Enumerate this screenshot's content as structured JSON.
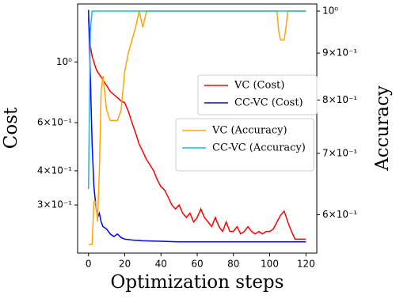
{
  "chart_data": {
    "type": "line",
    "xlabel": "Optimization steps",
    "ylabel": "Cost",
    "y2label": "Accuracy",
    "xlim": [
      -6,
      126
    ],
    "ylim": [
      0.2,
      1.63
    ],
    "y2lim": [
      0.545,
      1.018
    ],
    "yscale": "log",
    "y2scale": "log",
    "grid": false,
    "xticks": [
      0,
      20,
      40,
      60,
      80,
      100,
      120
    ],
    "yticks": [
      {
        "value": 1,
        "label": "10⁰"
      },
      {
        "value": 0.6,
        "label": "6×10⁻¹"
      },
      {
        "value": 0.4,
        "label": "4×10⁻¹"
      },
      {
        "value": 0.3,
        "label": "3×10⁻¹"
      }
    ],
    "y2ticks": [
      {
        "value": 1,
        "label": "10⁰"
      },
      {
        "value": 0.9,
        "label": "9×10⁻¹"
      },
      {
        "value": 0.8,
        "label": "8×10⁻¹"
      },
      {
        "value": 0.7,
        "label": "7×10⁻¹"
      },
      {
        "value": 0.6,
        "label": "6×10⁻¹"
      }
    ],
    "series": [
      {
        "name": "VC (Cost)",
        "color": "#ff0000",
        "x": [
          0,
          1,
          2,
          3,
          4,
          5,
          6,
          7,
          8,
          10,
          12,
          14,
          16,
          18,
          20,
          22,
          24,
          26,
          28,
          30,
          32,
          34,
          36,
          38,
          40,
          42,
          44,
          46,
          48,
          50,
          52,
          54,
          56,
          58,
          60,
          62,
          64,
          66,
          68,
          70,
          72,
          74,
          76,
          78,
          80,
          82,
          84,
          86,
          88,
          90,
          92,
          94,
          96,
          98,
          100,
          102,
          104,
          106,
          108,
          110,
          112,
          114,
          116,
          118,
          120
        ],
        "values": [
          1.45,
          1.15,
          1.05,
          1.0,
          0.95,
          0.92,
          0.9,
          0.88,
          0.86,
          0.82,
          0.78,
          0.76,
          0.74,
          0.72,
          0.71,
          0.66,
          0.6,
          0.55,
          0.5,
          0.47,
          0.44,
          0.42,
          0.4,
          0.37,
          0.35,
          0.34,
          0.32,
          0.3,
          0.29,
          0.3,
          0.28,
          0.27,
          0.28,
          0.26,
          0.27,
          0.29,
          0.27,
          0.26,
          0.25,
          0.27,
          0.25,
          0.24,
          0.26,
          0.24,
          0.24,
          0.25,
          0.235,
          0.24,
          0.25,
          0.24,
          0.235,
          0.24,
          0.235,
          0.24,
          0.24,
          0.245,
          0.26,
          0.275,
          0.285,
          0.26,
          0.24,
          0.225,
          0.225,
          0.225,
          0.225
        ]
      },
      {
        "name": "CC-VC (Cost)",
        "color": "#0000ff",
        "x": [
          0,
          1,
          2,
          3,
          4,
          5,
          6,
          7,
          8,
          10,
          12,
          14,
          16,
          18,
          20,
          25,
          30,
          40,
          50,
          60,
          70,
          80,
          90,
          100,
          110,
          120
        ],
        "values": [
          1.55,
          0.9,
          0.5,
          0.35,
          0.3,
          0.27,
          0.28,
          0.26,
          0.25,
          0.245,
          0.235,
          0.23,
          0.235,
          0.228,
          0.225,
          0.223,
          0.222,
          0.221,
          0.22,
          0.22,
          0.22,
          0.22,
          0.22,
          0.22,
          0.22,
          0.22
        ]
      },
      {
        "name": "VC (Accuracy)",
        "color": "#ffa500",
        "axis": "y2",
        "x": [
          0,
          1,
          2,
          3,
          4,
          5,
          6,
          7,
          8,
          10,
          12,
          14,
          16,
          18,
          20,
          22,
          24,
          26,
          28,
          30,
          32,
          104,
          105,
          106,
          107,
          108,
          109,
          110,
          120
        ],
        "values": [
          0.557,
          0.557,
          0.557,
          0.62,
          0.62,
          0.59,
          0.67,
          0.82,
          0.85,
          0.78,
          0.76,
          0.76,
          0.76,
          0.78,
          0.86,
          0.9,
          0.93,
          0.96,
          1.0,
          0.96,
          1.0,
          1.0,
          0.95,
          0.93,
          0.93,
          0.93,
          0.96,
          1.0,
          1.0
        ]
      },
      {
        "name": "CC-VC (Accuracy)",
        "color": "#17becf",
        "axis": "y2",
        "x": [
          0,
          1,
          2,
          3,
          120
        ],
        "values": [
          0.64,
          0.95,
          1.0,
          1.0,
          1.0
        ]
      }
    ]
  }
}
